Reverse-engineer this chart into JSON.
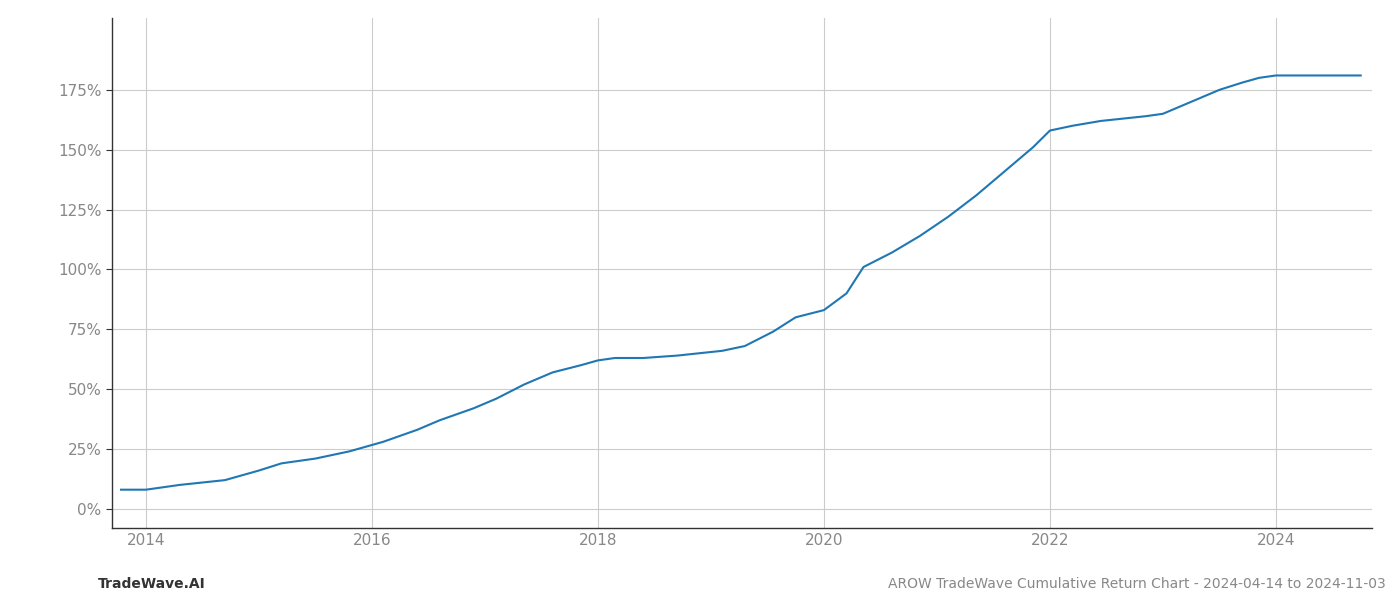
{
  "title": "",
  "footer_left": "TradeWave.AI",
  "footer_right": "AROW TradeWave Cumulative Return Chart - 2024-04-14 to 2024-11-03",
  "line_color": "#1f77b4",
  "line_width": 1.5,
  "background_color": "#ffffff",
  "grid_color": "#cccccc",
  "x_ticks": [
    2014,
    2016,
    2018,
    2020,
    2022,
    2024
  ],
  "y_ticks": [
    0,
    25,
    50,
    75,
    100,
    125,
    150,
    175
  ],
  "xlim": [
    2013.7,
    2024.85
  ],
  "ylim": [
    -8,
    205
  ],
  "data_x": [
    2013.78,
    2014.0,
    2014.15,
    2014.3,
    2014.5,
    2014.7,
    2014.85,
    2015.0,
    2015.2,
    2015.5,
    2015.8,
    2016.1,
    2016.4,
    2016.6,
    2016.9,
    2017.1,
    2017.35,
    2017.6,
    2017.85,
    2018.0,
    2018.15,
    2018.4,
    2018.7,
    2018.9,
    2019.1,
    2019.3,
    2019.55,
    2019.75,
    2020.0,
    2020.2,
    2020.35,
    2020.6,
    2020.85,
    2021.1,
    2021.35,
    2021.6,
    2021.85,
    2022.0,
    2022.2,
    2022.45,
    2022.65,
    2022.85,
    2023.0,
    2023.15,
    2023.3,
    2023.5,
    2023.7,
    2023.85,
    2024.0,
    2024.2,
    2024.5,
    2024.75
  ],
  "data_y": [
    8,
    8,
    9,
    10,
    11,
    12,
    14,
    16,
    19,
    21,
    24,
    28,
    33,
    37,
    42,
    46,
    52,
    57,
    60,
    62,
    63,
    63,
    64,
    65,
    66,
    68,
    74,
    80,
    83,
    90,
    101,
    107,
    114,
    122,
    131,
    141,
    151,
    158,
    160,
    162,
    163,
    164,
    165,
    168,
    171,
    175,
    178,
    180,
    181,
    181,
    181,
    181
  ],
  "tick_label_color": "#888888",
  "tick_label_fontsize": 11,
  "footer_fontsize": 10,
  "footer_left_color": "#333333",
  "footer_right_color": "#888888",
  "left_spine_color": "#333333",
  "bottom_spine_color": "#333333"
}
